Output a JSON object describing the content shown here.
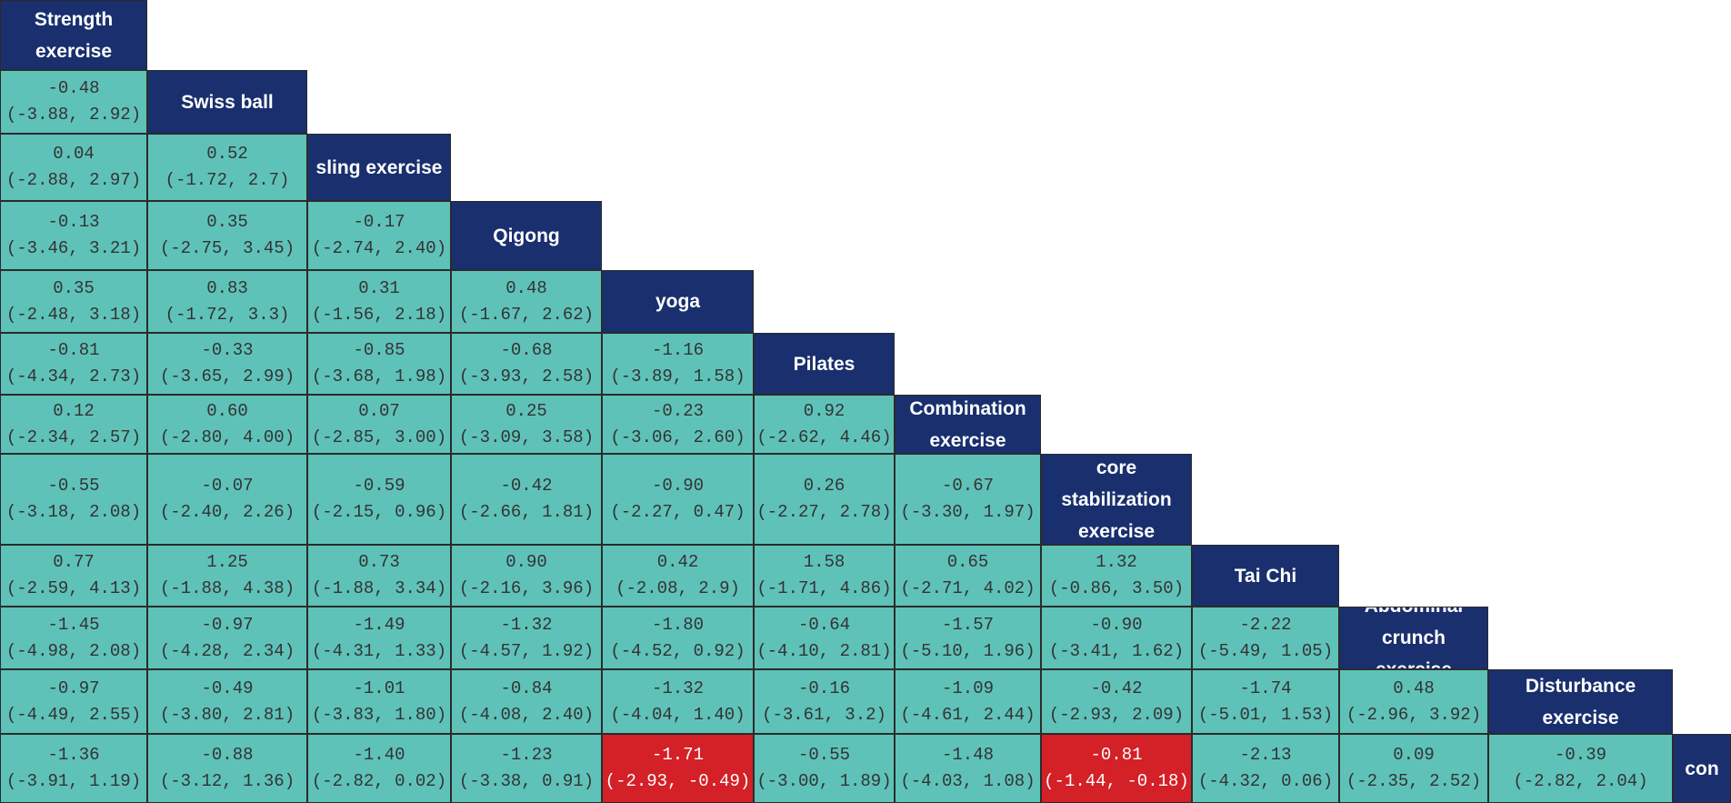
{
  "chart_data": {
    "type": "table",
    "treatments": [
      "Strength exercise",
      "Swiss ball",
      "sling exercise",
      "Qigong",
      "yoga",
      "Pilates",
      "Combination exercise",
      "core stabilization exercise",
      "Tai Chi",
      "Abdominal crunch exercise",
      "Disturbance exercise",
      "con"
    ],
    "comparisons": [
      [],
      [
        {
          "value": "-0.48",
          "ci": "(-3.88, 2.92)",
          "significant": false
        }
      ],
      [
        {
          "value": "0.04",
          "ci": "(-2.88, 2.97)",
          "significant": false
        },
        {
          "value": "0.52",
          "ci": "(-1.72, 2.7)",
          "significant": false
        }
      ],
      [
        {
          "value": "-0.13",
          "ci": "(-3.46, 3.21)",
          "significant": false
        },
        {
          "value": "0.35",
          "ci": "(-2.75, 3.45)",
          "significant": false
        },
        {
          "value": "-0.17",
          "ci": "(-2.74, 2.40)",
          "significant": false
        }
      ],
      [
        {
          "value": "0.35",
          "ci": "(-2.48, 3.18)",
          "significant": false
        },
        {
          "value": "0.83",
          "ci": "(-1.72, 3.3)",
          "significant": false
        },
        {
          "value": "0.31",
          "ci": "(-1.56, 2.18)",
          "significant": false
        },
        {
          "value": "0.48",
          "ci": "(-1.67, 2.62)",
          "significant": false
        }
      ],
      [
        {
          "value": "-0.81",
          "ci": "(-4.34, 2.73)",
          "significant": false
        },
        {
          "value": "-0.33",
          "ci": "(-3.65, 2.99)",
          "significant": false
        },
        {
          "value": "-0.85",
          "ci": "(-3.68, 1.98)",
          "significant": false
        },
        {
          "value": "-0.68",
          "ci": "(-3.93, 2.58)",
          "significant": false
        },
        {
          "value": "-1.16",
          "ci": "(-3.89, 1.58)",
          "significant": false
        }
      ],
      [
        {
          "value": "0.12",
          "ci": "(-2.34, 2.57)",
          "significant": false
        },
        {
          "value": "0.60",
          "ci": "(-2.80, 4.00)",
          "significant": false
        },
        {
          "value": "0.07",
          "ci": "(-2.85, 3.00)",
          "significant": false
        },
        {
          "value": "0.25",
          "ci": "(-3.09, 3.58)",
          "significant": false
        },
        {
          "value": "-0.23",
          "ci": "(-3.06, 2.60)",
          "significant": false
        },
        {
          "value": "0.92",
          "ci": "(-2.62, 4.46)",
          "significant": false
        }
      ],
      [
        {
          "value": "-0.55",
          "ci": "(-3.18, 2.08)",
          "significant": false
        },
        {
          "value": "-0.07",
          "ci": "(-2.40, 2.26)",
          "significant": false
        },
        {
          "value": "-0.59",
          "ci": "(-2.15, 0.96)",
          "significant": false
        },
        {
          "value": "-0.42",
          "ci": "(-2.66, 1.81)",
          "significant": false
        },
        {
          "value": "-0.90",
          "ci": "(-2.27, 0.47)",
          "significant": false
        },
        {
          "value": "0.26",
          "ci": "(-2.27, 2.78)",
          "significant": false
        },
        {
          "value": "-0.67",
          "ci": "(-3.30, 1.97)",
          "significant": false
        }
      ],
      [
        {
          "value": "0.77",
          "ci": "(-2.59, 4.13)",
          "significant": false
        },
        {
          "value": "1.25",
          "ci": "(-1.88, 4.38)",
          "significant": false
        },
        {
          "value": "0.73",
          "ci": "(-1.88, 3.34)",
          "significant": false
        },
        {
          "value": "0.90",
          "ci": "(-2.16, 3.96)",
          "significant": false
        },
        {
          "value": "0.42",
          "ci": "(-2.08, 2.9)",
          "significant": false
        },
        {
          "value": "1.58",
          "ci": "(-1.71, 4.86)",
          "significant": false
        },
        {
          "value": "0.65",
          "ci": "(-2.71, 4.02)",
          "significant": false
        },
        {
          "value": "1.32",
          "ci": "(-0.86, 3.50)",
          "significant": false
        }
      ],
      [
        {
          "value": "-1.45",
          "ci": "(-4.98, 2.08)",
          "significant": false
        },
        {
          "value": "-0.97",
          "ci": "(-4.28, 2.34)",
          "significant": false
        },
        {
          "value": "-1.49",
          "ci": "(-4.31, 1.33)",
          "significant": false
        },
        {
          "value": "-1.32",
          "ci": "(-4.57, 1.92)",
          "significant": false
        },
        {
          "value": "-1.80",
          "ci": "(-4.52, 0.92)",
          "significant": false
        },
        {
          "value": "-0.64",
          "ci": "(-4.10, 2.81)",
          "significant": false
        },
        {
          "value": "-1.57",
          "ci": "(-5.10, 1.96)",
          "significant": false
        },
        {
          "value": "-0.90",
          "ci": "(-3.41, 1.62)",
          "significant": false
        },
        {
          "value": "-2.22",
          "ci": "(-5.49, 1.05)",
          "significant": false
        }
      ],
      [
        {
          "value": "-0.97",
          "ci": "(-4.49, 2.55)",
          "significant": false
        },
        {
          "value": "-0.49",
          "ci": "(-3.80, 2.81)",
          "significant": false
        },
        {
          "value": "-1.01",
          "ci": "(-3.83, 1.80)",
          "significant": false
        },
        {
          "value": "-0.84",
          "ci": "(-4.08, 2.40)",
          "significant": false
        },
        {
          "value": "-1.32",
          "ci": "(-4.04, 1.40)",
          "significant": false
        },
        {
          "value": "-0.16",
          "ci": "(-3.61, 3.2)",
          "significant": false
        },
        {
          "value": "-1.09",
          "ci": "(-4.61, 2.44)",
          "significant": false
        },
        {
          "value": "-0.42",
          "ci": "(-2.93, 2.09)",
          "significant": false
        },
        {
          "value": "-1.74",
          "ci": "(-5.01, 1.53)",
          "significant": false
        },
        {
          "value": "0.48",
          "ci": "(-2.96, 3.92)",
          "significant": false
        }
      ],
      [
        {
          "value": "-1.36",
          "ci": "(-3.91, 1.19)",
          "significant": false
        },
        {
          "value": "-0.88",
          "ci": "(-3.12, 1.36)",
          "significant": false
        },
        {
          "value": "-1.40",
          "ci": "(-2.82, 0.02)",
          "significant": false
        },
        {
          "value": "-1.23",
          "ci": "(-3.38, 0.91)",
          "significant": false
        },
        {
          "value": "-1.71",
          "ci": "(-2.93, -0.49)",
          "significant": true
        },
        {
          "value": "-0.55",
          "ci": "(-3.00, 1.89)",
          "significant": false
        },
        {
          "value": "-1.48",
          "ci": "(-4.03, 1.08)",
          "significant": false
        },
        {
          "value": "-0.81",
          "ci": "(-1.44, -0.18)",
          "significant": true
        },
        {
          "value": "-2.13",
          "ci": "(-4.32, 0.06)",
          "significant": false
        },
        {
          "value": "0.09",
          "ci": "(-2.35, 2.52)",
          "significant": false
        },
        {
          "value": "-0.39",
          "ci": "(-2.82, 2.04)",
          "significant": false
        }
      ]
    ]
  },
  "colors": {
    "header_bg": "#192f6e",
    "header_text": "#ffffff",
    "cell_bg": "#5fc2b9",
    "cell_text": "#333333",
    "significant_bg": "#d42027",
    "significant_text": "#ffffff",
    "border": "#2b2b2b"
  }
}
